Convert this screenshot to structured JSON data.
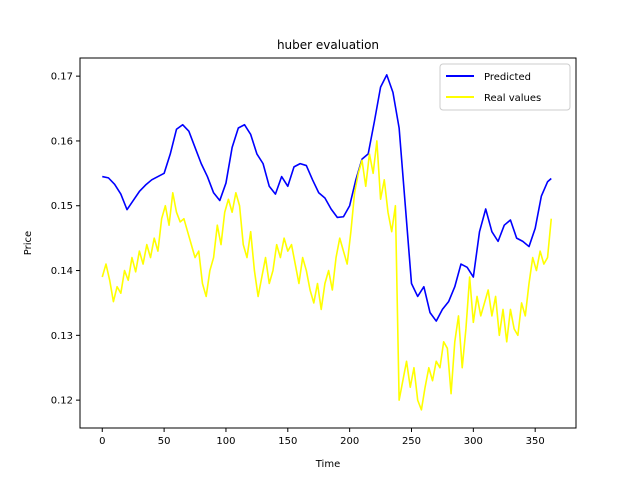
{
  "chart_data": {
    "type": "line",
    "title": "huber evaluation",
    "xlabel": "Time",
    "ylabel": "Price",
    "xlim": [
      -18,
      383
    ],
    "ylim": [
      0.1157,
      0.1728
    ],
    "xticks": [
      0,
      50,
      100,
      150,
      200,
      250,
      300,
      350
    ],
    "yticks": [
      0.12,
      0.13,
      0.14,
      0.15,
      0.16,
      0.17
    ],
    "ytick_labels": [
      "0.12",
      "0.13",
      "0.14",
      "0.15",
      "0.16",
      "0.17"
    ],
    "grid": false,
    "legend_position": "upper right",
    "series": [
      {
        "name": "Predicted",
        "color": "#0000ff",
        "points": [
          [
            0,
            0.1545
          ],
          [
            5,
            0.1543
          ],
          [
            10,
            0.1533
          ],
          [
            15,
            0.1518
          ],
          [
            20,
            0.1494
          ],
          [
            25,
            0.1508
          ],
          [
            30,
            0.1522
          ],
          [
            35,
            0.1532
          ],
          [
            40,
            0.154
          ],
          [
            45,
            0.1545
          ],
          [
            50,
            0.155
          ],
          [
            55,
            0.158
          ],
          [
            60,
            0.1618
          ],
          [
            65,
            0.1625
          ],
          [
            70,
            0.1615
          ],
          [
            75,
            0.159
          ],
          [
            80,
            0.1565
          ],
          [
            85,
            0.1545
          ],
          [
            90,
            0.152
          ],
          [
            95,
            0.1508
          ],
          [
            100,
            0.1535
          ],
          [
            105,
            0.159
          ],
          [
            110,
            0.162
          ],
          [
            115,
            0.1625
          ],
          [
            120,
            0.161
          ],
          [
            125,
            0.158
          ],
          [
            130,
            0.1565
          ],
          [
            135,
            0.153
          ],
          [
            140,
            0.1518
          ],
          [
            145,
            0.1545
          ],
          [
            150,
            0.153
          ],
          [
            155,
            0.156
          ],
          [
            160,
            0.1565
          ],
          [
            165,
            0.1562
          ],
          [
            170,
            0.154
          ],
          [
            175,
            0.152
          ],
          [
            180,
            0.1512
          ],
          [
            185,
            0.1495
          ],
          [
            190,
            0.1482
          ],
          [
            195,
            0.1483
          ],
          [
            200,
            0.15
          ],
          [
            205,
            0.154
          ],
          [
            210,
            0.1572
          ],
          [
            215,
            0.158
          ],
          [
            220,
            0.163
          ],
          [
            225,
            0.1683
          ],
          [
            230,
            0.1702
          ],
          [
            235,
            0.1675
          ],
          [
            240,
            0.162
          ],
          [
            245,
            0.15
          ],
          [
            250,
            0.138
          ],
          [
            255,
            0.136
          ],
          [
            260,
            0.1375
          ],
          [
            265,
            0.1335
          ],
          [
            270,
            0.1322
          ],
          [
            275,
            0.134
          ],
          [
            280,
            0.1352
          ],
          [
            285,
            0.1375
          ],
          [
            290,
            0.141
          ],
          [
            295,
            0.1405
          ],
          [
            300,
            0.139
          ],
          [
            305,
            0.146
          ],
          [
            310,
            0.1495
          ],
          [
            315,
            0.146
          ],
          [
            320,
            0.1445
          ],
          [
            325,
            0.147
          ],
          [
            330,
            0.1478
          ],
          [
            335,
            0.145
          ],
          [
            340,
            0.1445
          ],
          [
            345,
            0.1437
          ],
          [
            350,
            0.1465
          ],
          [
            355,
            0.1515
          ],
          [
            360,
            0.1537
          ],
          [
            363,
            0.1542
          ]
        ]
      },
      {
        "name": "Real values",
        "color": "#ffff00",
        "points": [
          [
            0,
            0.139
          ],
          [
            3,
            0.141
          ],
          [
            6,
            0.1385
          ],
          [
            9,
            0.1352
          ],
          [
            12,
            0.1375
          ],
          [
            15,
            0.1365
          ],
          [
            18,
            0.14
          ],
          [
            21,
            0.1385
          ],
          [
            24,
            0.142
          ],
          [
            27,
            0.1398
          ],
          [
            30,
            0.143
          ],
          [
            33,
            0.141
          ],
          [
            36,
            0.144
          ],
          [
            39,
            0.142
          ],
          [
            42,
            0.145
          ],
          [
            45,
            0.143
          ],
          [
            48,
            0.148
          ],
          [
            51,
            0.15
          ],
          [
            54,
            0.147
          ],
          [
            57,
            0.152
          ],
          [
            60,
            0.149
          ],
          [
            63,
            0.1475
          ],
          [
            66,
            0.148
          ],
          [
            69,
            0.146
          ],
          [
            72,
            0.144
          ],
          [
            75,
            0.142
          ],
          [
            78,
            0.143
          ],
          [
            81,
            0.138
          ],
          [
            84,
            0.136
          ],
          [
            87,
            0.14
          ],
          [
            90,
            0.142
          ],
          [
            93,
            0.147
          ],
          [
            96,
            0.144
          ],
          [
            99,
            0.149
          ],
          [
            102,
            0.151
          ],
          [
            105,
            0.149
          ],
          [
            108,
            0.152
          ],
          [
            111,
            0.15
          ],
          [
            114,
            0.144
          ],
          [
            117,
            0.142
          ],
          [
            120,
            0.146
          ],
          [
            123,
            0.14
          ],
          [
            126,
            0.136
          ],
          [
            129,
            0.139
          ],
          [
            132,
            0.142
          ],
          [
            135,
            0.138
          ],
          [
            138,
            0.14
          ],
          [
            141,
            0.144
          ],
          [
            144,
            0.142
          ],
          [
            147,
            0.145
          ],
          [
            150,
            0.143
          ],
          [
            153,
            0.144
          ],
          [
            156,
            0.141
          ],
          [
            159,
            0.138
          ],
          [
            162,
            0.142
          ],
          [
            165,
            0.14
          ],
          [
            168,
            0.137
          ],
          [
            171,
            0.135
          ],
          [
            174,
            0.138
          ],
          [
            177,
            0.134
          ],
          [
            180,
            0.138
          ],
          [
            183,
            0.14
          ],
          [
            186,
            0.137
          ],
          [
            189,
            0.142
          ],
          [
            192,
            0.145
          ],
          [
            195,
            0.143
          ],
          [
            198,
            0.141
          ],
          [
            201,
            0.146
          ],
          [
            204,
            0.152
          ],
          [
            207,
            0.155
          ],
          [
            210,
            0.157
          ],
          [
            213,
            0.153
          ],
          [
            216,
            0.158
          ],
          [
            219,
            0.155
          ],
          [
            222,
            0.16
          ],
          [
            225,
            0.151
          ],
          [
            228,
            0.154
          ],
          [
            231,
            0.149
          ],
          [
            234,
            0.146
          ],
          [
            237,
            0.15
          ],
          [
            240,
            0.12
          ],
          [
            243,
            0.123
          ],
          [
            246,
            0.126
          ],
          [
            249,
            0.122
          ],
          [
            252,
            0.125
          ],
          [
            255,
            0.12
          ],
          [
            258,
            0.1185
          ],
          [
            261,
            0.122
          ],
          [
            264,
            0.125
          ],
          [
            267,
            0.123
          ],
          [
            270,
            0.126
          ],
          [
            273,
            0.125
          ],
          [
            276,
            0.129
          ],
          [
            279,
            0.128
          ],
          [
            282,
            0.121
          ],
          [
            285,
            0.129
          ],
          [
            288,
            0.133
          ],
          [
            291,
            0.125
          ],
          [
            294,
            0.131
          ],
          [
            297,
            0.139
          ],
          [
            300,
            0.132
          ],
          [
            303,
            0.136
          ],
          [
            306,
            0.133
          ],
          [
            309,
            0.135
          ],
          [
            312,
            0.137
          ],
          [
            315,
            0.133
          ],
          [
            318,
            0.136
          ],
          [
            321,
            0.13
          ],
          [
            324,
            0.134
          ],
          [
            327,
            0.129
          ],
          [
            330,
            0.134
          ],
          [
            333,
            0.131
          ],
          [
            336,
            0.13
          ],
          [
            339,
            0.135
          ],
          [
            342,
            0.133
          ],
          [
            345,
            0.138
          ],
          [
            348,
            0.142
          ],
          [
            351,
            0.14
          ],
          [
            354,
            0.143
          ],
          [
            357,
            0.141
          ],
          [
            360,
            0.142
          ],
          [
            363,
            0.148
          ]
        ]
      }
    ]
  }
}
